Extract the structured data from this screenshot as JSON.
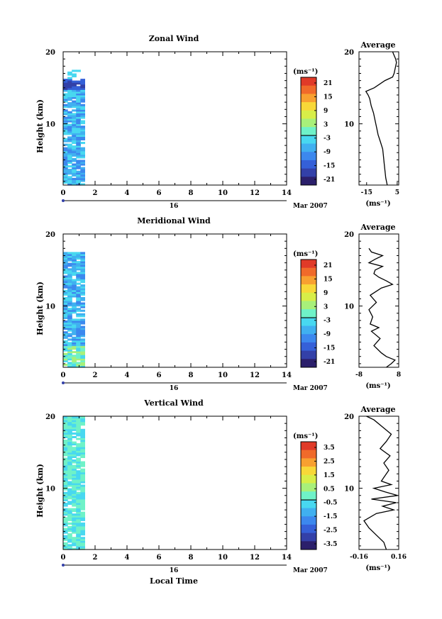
{
  "figure": {
    "x_axis_label": "Local Time",
    "date_label": "Mar 2007",
    "day_label": "16",
    "y_axis_label": "Height (km)",
    "unit_label": "(ms⁻¹)",
    "average_title": "Average"
  },
  "colorscale": [
    "#2b1f6b",
    "#3340a8",
    "#3560d8",
    "#3c88ee",
    "#40b0f0",
    "#48d8f0",
    "#6ff2c8",
    "#a8f07a",
    "#d8ee48",
    "#f8d838",
    "#f8a030",
    "#f06a2a",
    "#e03a28"
  ],
  "chart_data": [
    {
      "type": "heatmap",
      "title": "Zonal Wind",
      "xlabel": "Local Time",
      "ylabel": "Height (km)",
      "xlim": [
        0,
        14
      ],
      "ylim": [
        1.5,
        20
      ],
      "xticks": [
        "0",
        "2",
        "4",
        "6",
        "8",
        "10",
        "12",
        "14"
      ],
      "yticks": [
        "10",
        "20"
      ],
      "data_x_range": [
        0,
        1.35
      ],
      "data_height_range": [
        1.5,
        17.5
      ],
      "colorbar": {
        "label": "(ms⁻¹)",
        "ticks": [
          "21",
          "15",
          "9",
          "3",
          "-3",
          "-9",
          "-15",
          "-21"
        ],
        "range": [
          -24,
          24
        ]
      },
      "profile": {
        "title": "Average",
        "xlabel": "(ms⁻¹)",
        "xticks": [
          "-15",
          "5"
        ],
        "xlim": [
          -20,
          6
        ],
        "yticks": [
          "10",
          "20"
        ],
        "heights": [
          1.5,
          2.5,
          3.5,
          4.5,
          5.5,
          6.5,
          7.5,
          8.5,
          9.5,
          10.5,
          11.5,
          12.5,
          13.5,
          14.0,
          14.5,
          15.0,
          16.0,
          16.5,
          17.0,
          17.5,
          18.0,
          18.5,
          19.0,
          19.5,
          20.0
        ],
        "values": [
          -1.5,
          -2.5,
          -3.0,
          -3.5,
          -4.0,
          -4.5,
          -6.0,
          -7.5,
          -8.5,
          -9.5,
          -10.5,
          -12.0,
          -13.0,
          -14.0,
          -15.5,
          -10.0,
          -3.0,
          2.0,
          3.0,
          3.5,
          4.0,
          4.5,
          4.0,
          3.0,
          2.0
        ]
      }
    },
    {
      "type": "heatmap",
      "title": "Meridional Wind",
      "xlabel": "Local Time",
      "ylabel": "Height (km)",
      "xlim": [
        0,
        14
      ],
      "ylim": [
        1.5,
        20
      ],
      "xticks": [
        "0",
        "2",
        "4",
        "6",
        "8",
        "10",
        "12",
        "14"
      ],
      "yticks": [
        "10",
        "20"
      ],
      "data_x_range": [
        0,
        1.35
      ],
      "data_height_range": [
        1.5,
        17.5
      ],
      "colorbar": {
        "label": "(ms⁻¹)",
        "ticks": [
          "21",
          "15",
          "9",
          "3",
          "-3",
          "-9",
          "-15",
          "-21"
        ],
        "range": [
          -24,
          24
        ]
      },
      "profile": {
        "title": "Average",
        "xlabel": "(ms⁻¹)",
        "xticks": [
          "-8",
          "8"
        ],
        "xlim": [
          -8,
          8
        ],
        "yticks": [
          "10",
          "20"
        ],
        "heights": [
          1.5,
          2.0,
          2.5,
          3.0,
          3.5,
          4.5,
          5.5,
          6.5,
          7.0,
          7.5,
          8.5,
          9.5,
          10.5,
          11.5,
          12.5,
          13.0,
          13.5,
          14.0,
          14.5,
          15.0,
          15.5,
          16.0,
          16.5,
          17.0,
          17.5,
          18.0
        ],
        "values": [
          3.0,
          5.0,
          6.5,
          3.0,
          1.0,
          -2.0,
          0.5,
          -3.0,
          0.0,
          -3.5,
          -2.5,
          -4.0,
          -1.0,
          -3.5,
          1.0,
          5.5,
          3.0,
          0.0,
          -2.0,
          -1.5,
          1.5,
          -4.0,
          -1.5,
          1.5,
          -3.0,
          -4.0
        ]
      }
    },
    {
      "type": "heatmap",
      "title": "Vertical Wind",
      "xlabel": "Local Time",
      "ylabel": "Height (km)",
      "xlim": [
        0,
        14
      ],
      "ylim": [
        1.5,
        20
      ],
      "xticks": [
        "0",
        "2",
        "4",
        "6",
        "8",
        "10",
        "12",
        "14"
      ],
      "yticks": [
        "10",
        "20"
      ],
      "data_x_range": [
        0,
        1.35
      ],
      "data_height_range": [
        1.5,
        20
      ],
      "colorbar": {
        "label": "(ms⁻¹)",
        "ticks": [
          "3.5",
          "2.5",
          "1.5",
          "0.5",
          "-0.5",
          "-1.5",
          "-2.5",
          "-3.5"
        ],
        "range": [
          -4,
          4
        ]
      },
      "profile": {
        "title": "Average",
        "xlabel": "(ms⁻¹)",
        "xticks": [
          "-0.16",
          "0.16"
        ],
        "xlim": [
          -0.16,
          0.16
        ],
        "yticks": [
          "10",
          "20"
        ],
        "heights": [
          1.5,
          2.5,
          3.5,
          4.5,
          5.5,
          6.5,
          7.0,
          7.5,
          8.0,
          8.5,
          9.0,
          9.5,
          10.0,
          10.5,
          11.0,
          11.5,
          12.5,
          13.5,
          14.5,
          15.5,
          16.5,
          17.5,
          18.5,
          19.5,
          20.0
        ],
        "values": [
          0.06,
          0.04,
          -0.02,
          -0.08,
          -0.12,
          -0.02,
          0.12,
          0.03,
          0.14,
          -0.06,
          0.15,
          0.05,
          -0.04,
          0.1,
          0.02,
          0.04,
          0.08,
          0.04,
          0.09,
          0.01,
          0.06,
          0.1,
          0.03,
          -0.04,
          -0.1
        ]
      }
    }
  ]
}
